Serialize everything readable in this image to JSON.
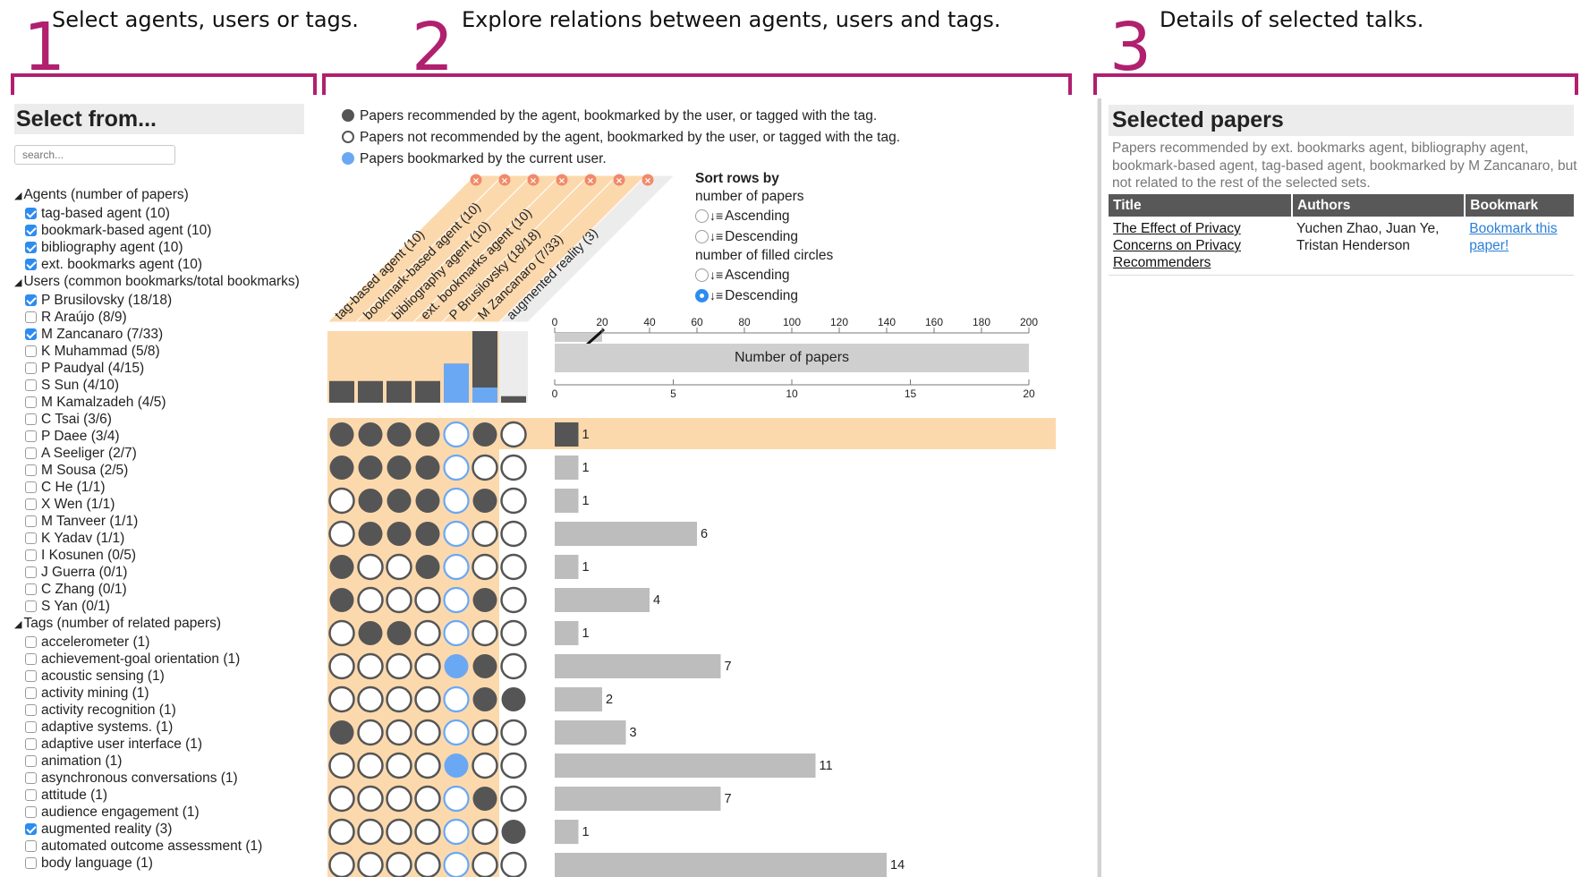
{
  "annotations": [
    {
      "num": "1",
      "text": "Select agents, users or tags."
    },
    {
      "num": "2",
      "text": "Explore relations between agents, users and tags."
    },
    {
      "num": "3",
      "text": "Details of selected talks."
    }
  ],
  "left": {
    "title": "Select from...",
    "search_placeholder": "search...",
    "groups": [
      {
        "label": "Agents (number of papers)",
        "items": [
          {
            "label": "tag-based agent (10)",
            "checked": true
          },
          {
            "label": "bookmark-based agent (10)",
            "checked": true
          },
          {
            "label": "bibliography agent (10)",
            "checked": true
          },
          {
            "label": "ext. bookmarks agent (10)",
            "checked": true
          }
        ]
      },
      {
        "label": "Users (common bookmarks/total bookmarks)",
        "items": [
          {
            "label": "P Brusilovsky (18/18)",
            "checked": true
          },
          {
            "label": "R Araújo (8/9)",
            "checked": false
          },
          {
            "label": "M Zancanaro (7/33)",
            "checked": true
          },
          {
            "label": "K Muhammad (5/8)",
            "checked": false
          },
          {
            "label": "P Paudyal (4/15)",
            "checked": false
          },
          {
            "label": "S Sun (4/10)",
            "checked": false
          },
          {
            "label": "M Kamalzadeh (4/5)",
            "checked": false
          },
          {
            "label": "C Tsai (3/6)",
            "checked": false
          },
          {
            "label": "P Daee (3/4)",
            "checked": false
          },
          {
            "label": "A Seeliger (2/7)",
            "checked": false
          },
          {
            "label": "M Sousa (2/5)",
            "checked": false
          },
          {
            "label": "C He (1/1)",
            "checked": false
          },
          {
            "label": "X Wen (1/1)",
            "checked": false
          },
          {
            "label": "M Tanveer (1/1)",
            "checked": false
          },
          {
            "label": "K Yadav (1/1)",
            "checked": false
          },
          {
            "label": "I Kosunen (0/5)",
            "checked": false
          },
          {
            "label": "J Guerra (0/1)",
            "checked": false
          },
          {
            "label": "C Zhang (0/1)",
            "checked": false
          },
          {
            "label": "S Yan (0/1)",
            "checked": false
          }
        ]
      },
      {
        "label": "Tags (number of related papers)",
        "items": [
          {
            "label": "accelerometer (1)",
            "checked": false
          },
          {
            "label": "achievement-goal orientation (1)",
            "checked": false
          },
          {
            "label": "acoustic sensing (1)",
            "checked": false
          },
          {
            "label": "activity mining (1)",
            "checked": false
          },
          {
            "label": "activity recognition (1)",
            "checked": false
          },
          {
            "label": "adaptive systems. (1)",
            "checked": false
          },
          {
            "label": "adaptive user interface (1)",
            "checked": false
          },
          {
            "label": "animation (1)",
            "checked": false
          },
          {
            "label": "asynchronous conversations (1)",
            "checked": false
          },
          {
            "label": "attitude (1)",
            "checked": false
          },
          {
            "label": "audience engagement (1)",
            "checked": false
          },
          {
            "label": "augmented reality (3)",
            "checked": true
          },
          {
            "label": "automated outcome assessment (1)",
            "checked": false
          },
          {
            "label": "body language (1)",
            "checked": false
          }
        ]
      }
    ]
  },
  "legend": [
    {
      "kind": "filled",
      "text": "Papers recommended by the agent, bookmarked by the user, or tagged with the tag."
    },
    {
      "kind": "empty",
      "text": "Papers not recommended by the agent, bookmarked by the user, or tagged with the tag."
    },
    {
      "kind": "blue",
      "text": "Papers bookmarked by the current user."
    }
  ],
  "sort": {
    "heading": "Sort rows by",
    "group1": "number of papers",
    "group2": "number of filled circles",
    "asc": "Ascending",
    "desc": "Descending",
    "selected": "filled_desc"
  },
  "columns": [
    {
      "label": "tag-based agent (10)",
      "highlight": true,
      "count": 10,
      "blue": 0
    },
    {
      "label": "bookmark-based agent (10)",
      "highlight": true,
      "count": 10,
      "blue": 0
    },
    {
      "label": "bibliography agent (10)",
      "highlight": true,
      "count": 10,
      "blue": 0
    },
    {
      "label": "ext. bookmarks agent (10)",
      "highlight": true,
      "count": 10,
      "blue": 0
    },
    {
      "label": "P Brusilovsky (18/18)",
      "highlight": true,
      "count": 18,
      "blue": 18
    },
    {
      "label": "M Zancanaro (7/33)",
      "highlight": true,
      "count": 33,
      "blue": 7
    },
    {
      "label": "augmented reality (3)",
      "highlight": false,
      "count": 3,
      "blue": 0
    }
  ],
  "axis_top": {
    "ticks": [
      "0",
      "20",
      "40",
      "60",
      "80",
      "100",
      "120",
      "140",
      "160",
      "180",
      "200"
    ],
    "max": 200
  },
  "axis_label": "Number of papers",
  "axis_bottom": {
    "ticks": [
      "0",
      "5",
      "10",
      "15",
      "20"
    ],
    "max": 20
  },
  "colors": {
    "accent": "#b0206f",
    "filled": "#555555",
    "blue": "#6aa8f4",
    "highlight_col": "#fcd9ad",
    "bar": "#bdbdbd",
    "selected_bar": "#555555"
  },
  "rows": [
    {
      "cells": [
        "f",
        "f",
        "f",
        "f",
        "b",
        "f",
        "e"
      ],
      "value": 1,
      "selected": true
    },
    {
      "cells": [
        "f",
        "f",
        "f",
        "f",
        "b",
        "e",
        "e"
      ],
      "value": 1,
      "selected": false
    },
    {
      "cells": [
        "e",
        "f",
        "f",
        "f",
        "b",
        "f",
        "e"
      ],
      "value": 1,
      "selected": false
    },
    {
      "cells": [
        "e",
        "f",
        "f",
        "f",
        "b",
        "e",
        "e"
      ],
      "value": 6,
      "selected": false
    },
    {
      "cells": [
        "f",
        "e",
        "e",
        "f",
        "b",
        "e",
        "e"
      ],
      "value": 1,
      "selected": false
    },
    {
      "cells": [
        "f",
        "e",
        "e",
        "e",
        "b",
        "f",
        "e"
      ],
      "value": 4,
      "selected": false
    },
    {
      "cells": [
        "e",
        "f",
        "f",
        "e",
        "b",
        "e",
        "e"
      ],
      "value": 1,
      "selected": false
    },
    {
      "cells": [
        "e",
        "e",
        "e",
        "e",
        "B",
        "f",
        "e"
      ],
      "value": 7,
      "selected": false
    },
    {
      "cells": [
        "e",
        "e",
        "e",
        "e",
        "b",
        "f",
        "f"
      ],
      "value": 2,
      "selected": false
    },
    {
      "cells": [
        "f",
        "e",
        "e",
        "e",
        "b",
        "e",
        "e"
      ],
      "value": 3,
      "selected": false
    },
    {
      "cells": [
        "e",
        "e",
        "e",
        "e",
        "B",
        "e",
        "e"
      ],
      "value": 11,
      "selected": false
    },
    {
      "cells": [
        "e",
        "e",
        "e",
        "e",
        "b",
        "f",
        "e"
      ],
      "value": 7,
      "selected": false
    },
    {
      "cells": [
        "e",
        "e",
        "e",
        "e",
        "b",
        "e",
        "f"
      ],
      "value": 1,
      "selected": false
    },
    {
      "cells": [
        "e",
        "e",
        "e",
        "e",
        "b",
        "e",
        "e"
      ],
      "value": 14,
      "selected": false
    }
  ],
  "right": {
    "title": "Selected papers",
    "description": "Papers recommended by ext. bookmarks agent, bibliography agent, bookmark-based agent, tag-based agent, bookmarked by M Zancanaro, but not related to the rest of the selected sets.",
    "headers": [
      "Title",
      "Authors",
      "Bookmark"
    ],
    "papers": [
      {
        "title": "The Effect of Privacy Concerns on Privacy Recommenders",
        "authors": "Yuchen Zhao, Juan Ye, Tristan Henderson",
        "bookmark": "Bookmark this paper!"
      }
    ]
  }
}
